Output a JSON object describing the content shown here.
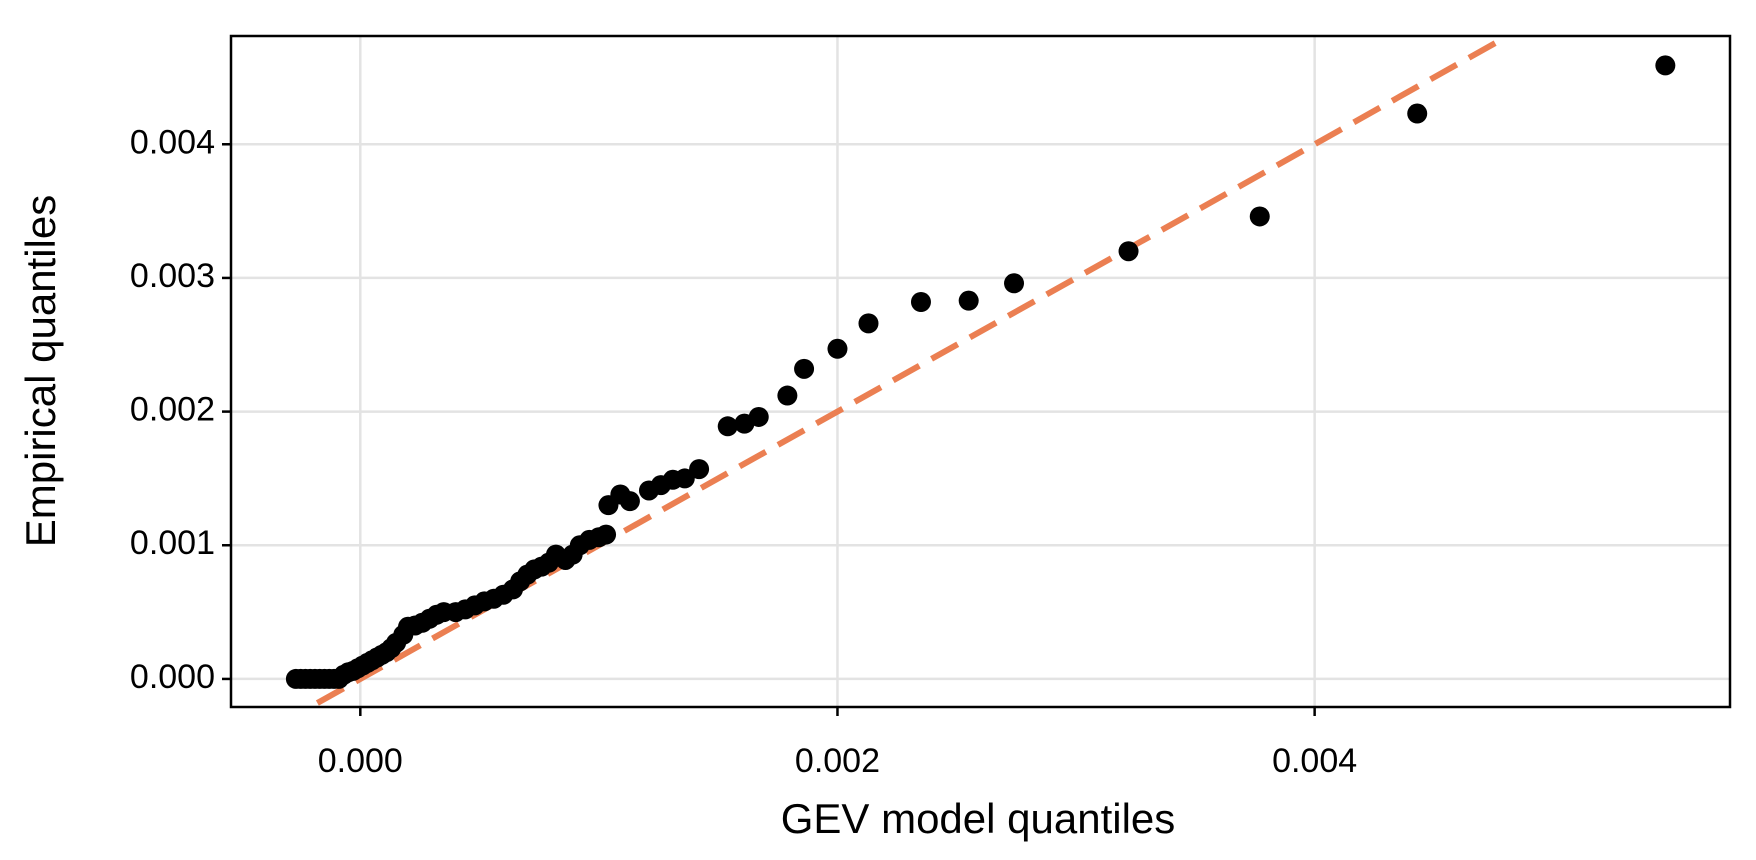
{
  "chart_data": {
    "type": "scatter",
    "xlabel": "GEV model quantiles",
    "ylabel": "Empirical quantiles",
    "x": [
      -0.00027,
      -0.00025,
      -0.00023,
      -0.00021,
      -0.00019,
      -0.00017,
      -0.00015,
      -0.00013,
      -0.00011,
      -9e-05,
      -7e-05,
      -5e-05,
      -3e-05,
      -1e-05,
      1e-05,
      3e-05,
      5e-05,
      7e-05,
      9e-05,
      0.00011,
      0.00013,
      0.00015,
      0.00018,
      0.0002,
      0.00023,
      0.00026,
      0.00029,
      0.00032,
      0.00035,
      0.0004,
      0.00044,
      0.00048,
      0.00052,
      0.00056,
      0.0006,
      0.00064,
      0.00067,
      0.0007,
      0.00073,
      0.00076,
      0.00079,
      0.00082,
      0.00086,
      0.00089,
      0.00092,
      0.00096,
      0.001,
      0.00103,
      0.00104,
      0.00109,
      0.00113,
      0.00121,
      0.00126,
      0.00131,
      0.00136,
      0.00142,
      0.00154,
      0.00161,
      0.00167,
      0.00179,
      0.00186,
      0.002,
      0.00213,
      0.00235,
      0.00255,
      0.00274,
      0.00322,
      0.00377,
      0.00443,
      0.00547
    ],
    "values": [
      0,
      0,
      0,
      0,
      0,
      0,
      0,
      0,
      0,
      0,
      3e-05,
      5e-05,
      6e-05,
      8e-05,
      0.0001,
      0.00012,
      0.00014,
      0.00016,
      0.00018,
      0.0002,
      0.00023,
      0.00027,
      0.00033,
      0.00039,
      0.0004,
      0.00042,
      0.00045,
      0.00048,
      0.0005,
      0.0005,
      0.00052,
      0.00055,
      0.00058,
      0.0006,
      0.00063,
      0.00067,
      0.00073,
      0.00078,
      0.00082,
      0.00084,
      0.00087,
      0.00093,
      0.00089,
      0.00093,
      0.001,
      0.00104,
      0.00106,
      0.00108,
      0.0013,
      0.00138,
      0.00133,
      0.00141,
      0.00145,
      0.00149,
      0.0015,
      0.00157,
      0.00189,
      0.00191,
      0.00196,
      0.00212,
      0.00232,
      0.00247,
      0.00266,
      0.00282,
      0.00283,
      0.00296,
      0.0032,
      0.00346,
      0.00423,
      0.00459
    ],
    "color": "#000000",
    "reference_line": {
      "x": [
        -0.00018,
        0.0048
      ],
      "values": [
        -0.00018,
        0.0048
      ],
      "color": "#eb7f52",
      "style": "dashed"
    },
    "xlim": [
      -0.000542,
      0.005741
    ],
    "ylim": [
      -0.00021,
      0.00481
    ],
    "xticks": [
      {
        "value": 0,
        "label": "0.000"
      },
      {
        "value": 0.002,
        "label": "0.002"
      },
      {
        "value": 0.004,
        "label": "0.004"
      }
    ],
    "yticks": [
      {
        "value": 0,
        "label": "0.000"
      },
      {
        "value": 0.001,
        "label": "0.001"
      },
      {
        "value": 0.002,
        "label": "0.002"
      },
      {
        "value": 0.003,
        "label": "0.003"
      },
      {
        "value": 0.004,
        "label": "0.004"
      }
    ],
    "grid": true
  }
}
